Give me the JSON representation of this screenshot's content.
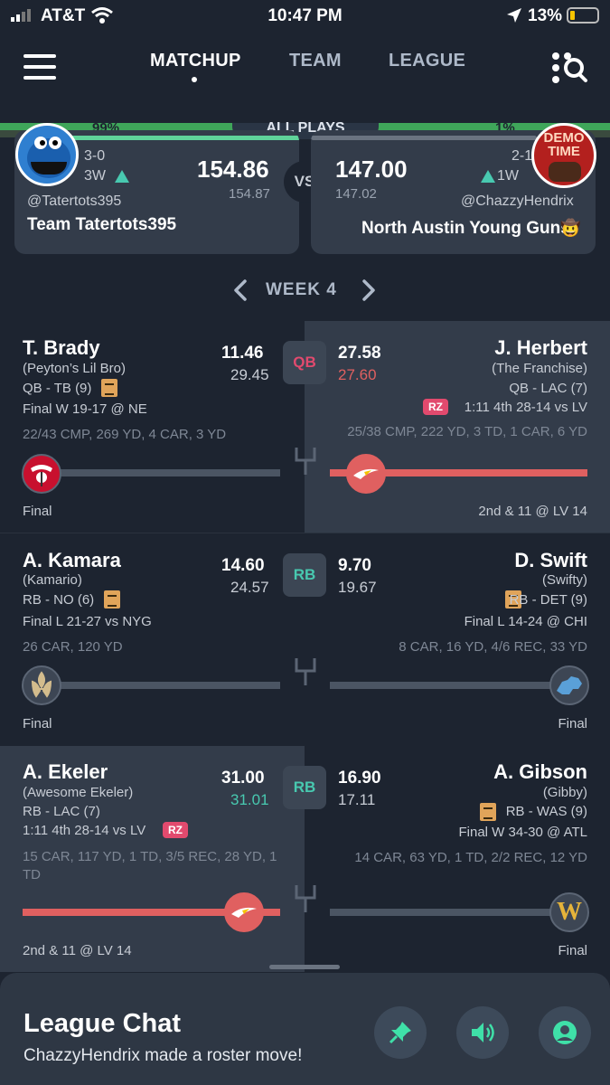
{
  "status_bar": {
    "carrier": "AT&T",
    "time": "10:47 PM",
    "battery": "13%"
  },
  "nav": {
    "tabs": [
      "MATCHUP",
      "TEAM",
      "LEAGUE"
    ],
    "active_tab": "MATCHUP"
  },
  "banner": {
    "left_pct": "99%",
    "center": "ALL PLAYS",
    "right_pct": "1%"
  },
  "matchup": {
    "left": {
      "record": "3-0",
      "streak": "3W",
      "score": "154.86",
      "projected": "154.87",
      "handle": "@Tatertots395",
      "team": "Team Tatertots395"
    },
    "vs": "VS",
    "right": {
      "record": "2-1",
      "streak": "1W",
      "score": "147.00",
      "projected": "147.02",
      "handle": "@ChazzyHendrix",
      "team": "North Austin Young Guns",
      "emoji": "🤠",
      "avatar_text": "DEMO TIME"
    }
  },
  "week": {
    "label": "WEEK 4"
  },
  "rows": [
    {
      "position": "QB",
      "left": {
        "name": "T. Brady",
        "nickname": "(Peyton’s Lil Bro)",
        "pos_team": "QB - TB (9)",
        "game": "Final W 19-17 @ NE",
        "stats": "22/43 CMP, 269 YD, 4 CAR, 3 YD",
        "points": "11.46",
        "proj": "29.45",
        "footer": "Final",
        "team_logo": "buccaneers-logo"
      },
      "right": {
        "name": "J. Herbert",
        "nickname": "(The Franchise)",
        "pos_team": "QB - LAC (7)",
        "game": "1:11 4th 28-14 vs LV",
        "badge": "RZ",
        "stats": "25/38 CMP, 222 YD, 3 TD, 1 CAR, 6 YD",
        "points": "27.58",
        "proj": "27.60",
        "footer": "2nd & 11 @ LV 14",
        "team_logo": "chargers-logo"
      }
    },
    {
      "position": "RB",
      "left": {
        "name": "A. Kamara",
        "nickname": "(Kamario)",
        "pos_team": "RB - NO (6)",
        "game": "Final L 21-27 vs NYG",
        "stats": "26 CAR, 120 YD",
        "points": "14.60",
        "proj": "24.57",
        "footer": "Final",
        "team_logo": "saints-logo"
      },
      "right": {
        "name": "D. Swift",
        "nickname": "(Swifty)",
        "pos_team": "RB - DET (9)",
        "game": "Final L 14-24 @ CHI",
        "stats": "8 CAR, 16 YD, 4/6 REC, 33 YD",
        "points": "9.70",
        "proj": "19.67",
        "footer": "Final",
        "team_logo": "lions-logo"
      }
    },
    {
      "position": "RB",
      "left": {
        "name": "A. Ekeler",
        "nickname": "(Awesome Ekeler)",
        "pos_team": "RB - LAC (7)",
        "game": "1:11 4th 28-14 vs LV",
        "badge": "RZ",
        "stats": "15 CAR, 117 YD, 1 TD, 3/5 REC, 28 YD, 1 TD",
        "points": "31.00",
        "proj": "31.01",
        "footer": "2nd & 11 @ LV 14",
        "team_logo": "chargers-logo"
      },
      "right": {
        "name": "A. Gibson",
        "nickname": "(Gibby)",
        "pos_team": "RB - WAS (9)",
        "game": "Final W 34-30 @ ATL",
        "stats": "14 CAR, 63 YD, 1 TD, 2/2 REC, 12 YD",
        "points": "16.90",
        "proj": "17.11",
        "footer": "Final",
        "team_logo": "washington-logo",
        "logo_letter": "W"
      }
    }
  ],
  "chat": {
    "title": "League Chat",
    "message": "ChazzyHendrix made a roster move!"
  },
  "colors": {
    "bg": "#1d2430",
    "card": "#333c4a",
    "accent_green": "#3fb37f",
    "accent_red": "#e06060",
    "teal": "#48c9b0"
  }
}
